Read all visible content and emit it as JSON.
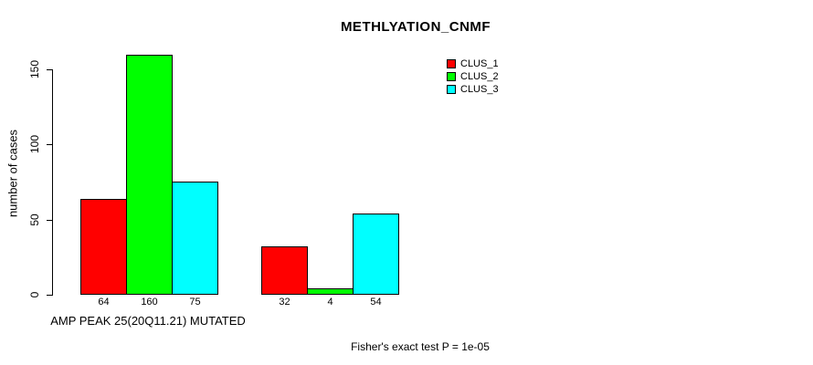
{
  "chart_data": {
    "type": "bar",
    "title": "METHLYATION_CNMF",
    "ylabel": "number of cases",
    "xlabel": "AMP PEAK 25(20Q11.21) MUTATED",
    "annotation": "Fisher's exact test P = 1e-05",
    "ylim": [
      0,
      150
    ],
    "yticks": [
      0,
      50,
      100,
      150
    ],
    "grid": false,
    "legend_position": "top-right",
    "categories": [
      "",
      ""
    ],
    "series": [
      {
        "name": "CLUS_1",
        "color": "#ff0000",
        "values": [
          64,
          32
        ]
      },
      {
        "name": "CLUS_2",
        "color": "#00ff00",
        "values": [
          160,
          4
        ]
      },
      {
        "name": "CLUS_3",
        "color": "#00ffff",
        "values": [
          75,
          54
        ]
      }
    ],
    "bar_labels": [
      [
        "64",
        "160",
        "75"
      ],
      [
        "32",
        "4",
        "54"
      ]
    ],
    "colors": {
      "axis": "#000000",
      "text": "#000000",
      "background": "#ffffff"
    }
  }
}
